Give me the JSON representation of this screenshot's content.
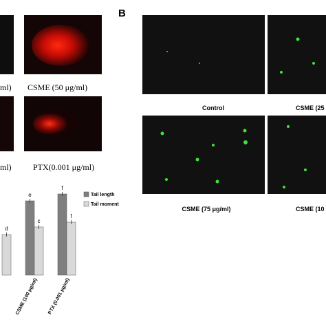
{
  "panel_a": {
    "labels": [
      "ml)",
      "CSME (50 μg/ml)",
      "ml)",
      "PTX(0.001 μg/ml)"
    ]
  },
  "panel_b": {
    "label": "B",
    "labels": [
      "Control",
      "CSME (25",
      "CSME (75 μg/ml)",
      "CSME (10"
    ]
  },
  "chart_data": {
    "type": "bar",
    "categories": [
      null,
      "CSME (100 μg/ml)",
      "PTX (0.001 μg/ml)"
    ],
    "series": [
      {
        "name": "Tail length",
        "color": "#7f7f7f",
        "values": [
          null,
          108,
          118
        ],
        "annotations": [
          null,
          "e",
          "f"
        ]
      },
      {
        "name": "Tail moment",
        "color": "#d9d9d9",
        "values": [
          59,
          70,
          77
        ],
        "annotations": [
          "d",
          "c",
          "f"
        ]
      }
    ],
    "ylim": [
      0,
      130
    ]
  }
}
